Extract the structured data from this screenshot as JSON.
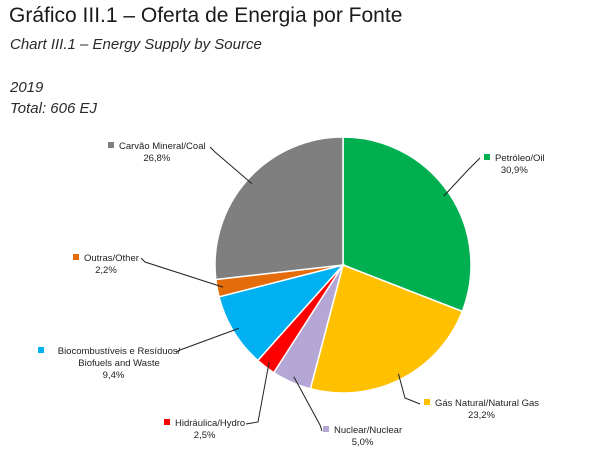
{
  "header": {
    "title": "Gráfico III.1 – Oferta de Energia por Fonte",
    "subtitle": "Chart III.1 – Energy Supply by Source",
    "year": "2019",
    "total": "Total: 606 EJ"
  },
  "chart_data": {
    "type": "pie",
    "title": "Gráfico III.1 – Oferta de Energia por Fonte",
    "subtitle": "Chart III.1 – Energy Supply by Source",
    "annotations": [
      "2019",
      "Total: 606 EJ"
    ],
    "unit": "%",
    "slices": [
      {
        "label": "Petróleo/Oil",
        "value": 30.9,
        "value_label": "30,9%",
        "color": "#00b050"
      },
      {
        "label": "Gás Natural/Natural Gas",
        "value": 23.2,
        "value_label": "23,2%",
        "color": "#ffc000"
      },
      {
        "label": "Nuclear/Nuclear",
        "value": 5.0,
        "value_label": "5,0%",
        "color": "#b4a7d6"
      },
      {
        "label": "Hidráulica/Hydro",
        "value": 2.5,
        "value_label": "2,5%",
        "color": "#ff0000"
      },
      {
        "label": "Biocombustíveis e Resíduos/ Biofuels and Waste",
        "value": 9.4,
        "value_label": "9,4%",
        "color": "#00b0f0"
      },
      {
        "label": "Outras/Other",
        "value": 2.2,
        "value_label": "2,2%",
        "color": "#e46c0a"
      },
      {
        "label": "Carvão Mineral/Coal",
        "value": 26.8,
        "value_label": "26,8%",
        "color": "#7f7f7f"
      }
    ],
    "legend": "callout labels around pie"
  }
}
